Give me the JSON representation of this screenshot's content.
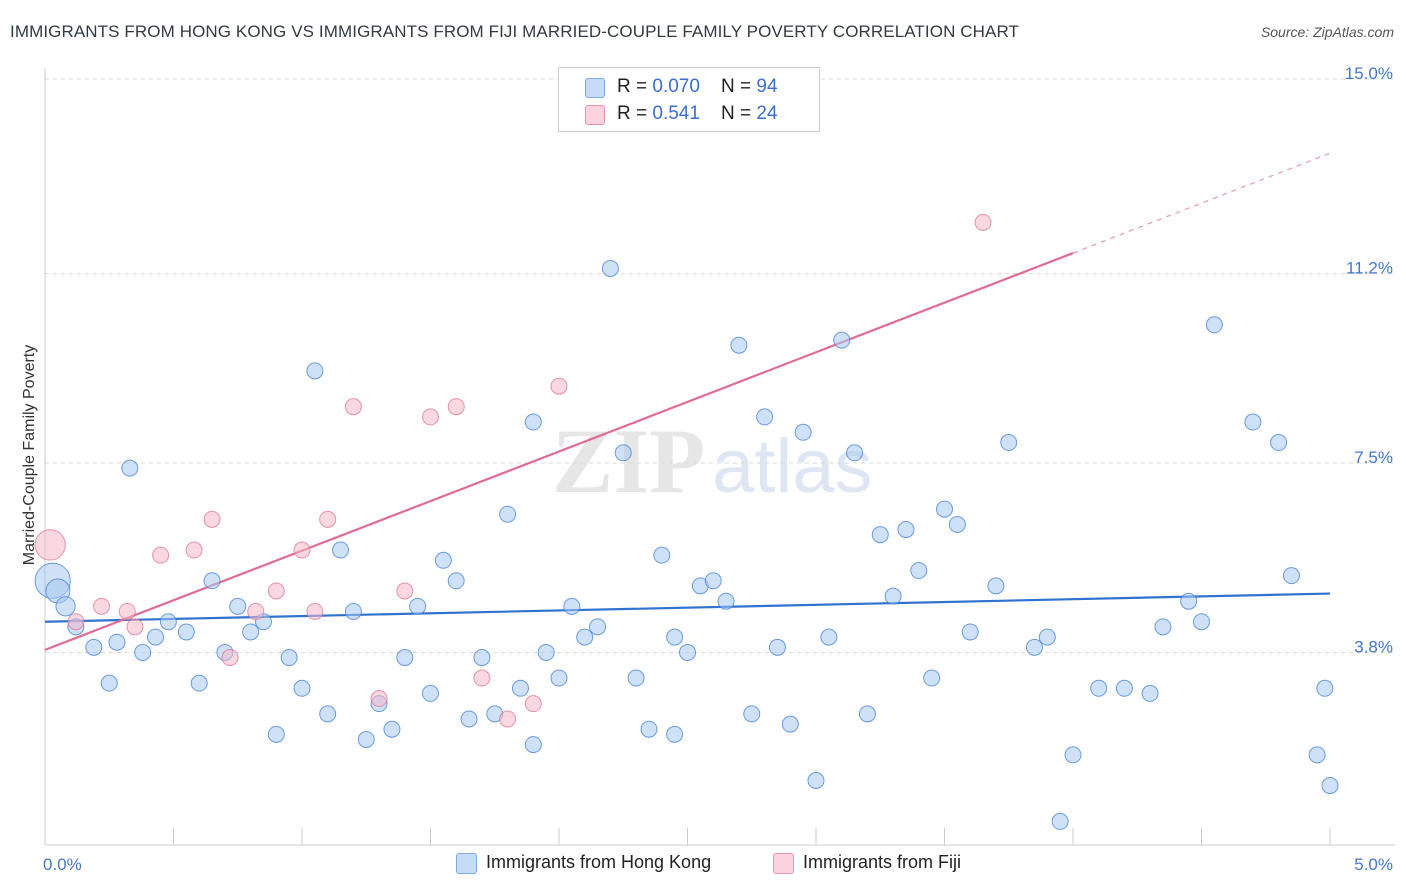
{
  "title": "IMMIGRANTS FROM HONG KONG VS IMMIGRANTS FROM FIJI MARRIED-COUPLE FAMILY POVERTY CORRELATION CHART",
  "source": "Source: ZipAtlas.com",
  "watermark": {
    "zip": "ZIP",
    "atlas": "atlas"
  },
  "legend": {
    "rows": [
      {
        "r_label": "R = ",
        "r_value": "0.070",
        "n_label": "N = ",
        "n_value": "94",
        "color": "#a8c8f0"
      },
      {
        "r_label": "R = ",
        "r_value": "0.541",
        "n_label": "N = ",
        "n_value": "24",
        "color": "#f5b8cb"
      }
    ]
  },
  "bottom_legend": [
    {
      "label": "Immigrants from Hong Kong",
      "color": "#a8c8f0"
    },
    {
      "label": "Immigrants from Fiji",
      "color": "#f5b8cb"
    }
  ],
  "chart_data": {
    "type": "scatter",
    "ylabel": "Married-Couple Family Poverty",
    "xlim": [
      0,
      5
    ],
    "ylim": [
      0,
      15
    ],
    "x_ticks": [
      "0.0%",
      "5.0%"
    ],
    "y_ticks": [
      {
        "value": 3.8,
        "label": "3.8%"
      },
      {
        "value": 7.5,
        "label": "7.5%"
      },
      {
        "value": 11.2,
        "label": "11.2%"
      },
      {
        "value": 15.0,
        "label": "15.0%"
      }
    ],
    "grid": "horizontal dashed",
    "series": [
      {
        "name": "Immigrants from Hong Kong",
        "color": "#4a86d8",
        "fill": "#a8c8f0",
        "trend": {
          "x": [
            0,
            5
          ],
          "y": [
            4.4,
            4.95
          ],
          "color": "#2f72d0"
        },
        "points": [
          [
            0.03,
            5.2,
            2.2
          ],
          [
            0.05,
            5.0,
            1.5
          ],
          [
            0.08,
            4.7,
            1.2
          ],
          [
            0.12,
            4.3,
            1
          ],
          [
            0.19,
            3.9,
            1
          ],
          [
            0.25,
            3.2,
            1
          ],
          [
            0.28,
            4.0,
            1
          ],
          [
            0.33,
            7.4,
            1
          ],
          [
            0.38,
            3.8,
            1
          ],
          [
            0.43,
            4.1,
            1
          ],
          [
            0.48,
            4.4,
            1
          ],
          [
            0.55,
            4.2,
            1
          ],
          [
            0.6,
            3.2,
            1
          ],
          [
            0.65,
            5.2,
            1
          ],
          [
            0.7,
            3.8,
            1
          ],
          [
            0.75,
            4.7,
            1
          ],
          [
            0.8,
            4.2,
            1
          ],
          [
            0.85,
            4.4,
            1
          ],
          [
            0.9,
            2.2,
            1
          ],
          [
            0.95,
            3.7,
            1
          ],
          [
            1.0,
            3.1,
            1
          ],
          [
            1.05,
            9.3,
            1
          ],
          [
            1.1,
            2.6,
            1
          ],
          [
            1.15,
            5.8,
            1
          ],
          [
            1.2,
            4.6,
            1
          ],
          [
            1.25,
            2.1,
            1
          ],
          [
            1.3,
            2.8,
            1
          ],
          [
            1.35,
            2.3,
            1
          ],
          [
            1.4,
            3.7,
            1
          ],
          [
            1.45,
            4.7,
            1
          ],
          [
            1.5,
            3.0,
            1
          ],
          [
            1.55,
            5.6,
            1
          ],
          [
            1.6,
            5.2,
            1
          ],
          [
            1.65,
            2.5,
            1
          ],
          [
            1.7,
            3.7,
            1
          ],
          [
            1.75,
            2.6,
            1
          ],
          [
            1.8,
            6.5,
            1
          ],
          [
            1.85,
            3.1,
            1
          ],
          [
            1.9,
            8.3,
            1
          ],
          [
            1.95,
            3.8,
            1
          ],
          [
            2.0,
            3.3,
            1
          ],
          [
            2.05,
            4.7,
            1
          ],
          [
            2.1,
            4.1,
            1
          ],
          [
            2.15,
            4.3,
            1
          ],
          [
            2.2,
            11.3,
            1
          ],
          [
            2.25,
            7.7,
            1
          ],
          [
            2.3,
            3.3,
            1
          ],
          [
            2.35,
            2.3,
            1
          ],
          [
            2.4,
            5.7,
            1
          ],
          [
            2.45,
            2.2,
            1
          ],
          [
            2.5,
            3.8,
            1
          ],
          [
            2.55,
            5.1,
            1
          ],
          [
            2.6,
            5.2,
            1
          ],
          [
            2.65,
            4.8,
            1
          ],
          [
            2.7,
            9.8,
            1
          ],
          [
            2.75,
            2.6,
            1
          ],
          [
            2.8,
            8.4,
            1
          ],
          [
            2.85,
            3.9,
            1
          ],
          [
            2.9,
            2.4,
            1
          ],
          [
            2.95,
            8.1,
            1
          ],
          [
            3.0,
            1.3,
            1
          ],
          [
            3.05,
            4.1,
            1
          ],
          [
            3.1,
            9.9,
            1
          ],
          [
            3.15,
            7.7,
            1
          ],
          [
            3.2,
            2.6,
            1
          ],
          [
            3.25,
            6.1,
            1
          ],
          [
            3.3,
            4.9,
            1
          ],
          [
            3.35,
            6.2,
            1
          ],
          [
            3.4,
            5.4,
            1
          ],
          [
            3.45,
            3.3,
            1
          ],
          [
            3.5,
            6.6,
            1
          ],
          [
            3.55,
            6.3,
            1
          ],
          [
            3.7,
            5.1,
            1
          ],
          [
            3.75,
            7.9,
            1
          ],
          [
            3.85,
            3.9,
            1
          ],
          [
            3.9,
            4.1,
            1
          ],
          [
            3.95,
            0.5,
            1
          ],
          [
            4.0,
            1.8,
            1
          ],
          [
            4.1,
            3.1,
            1
          ],
          [
            4.2,
            3.1,
            1
          ],
          [
            4.3,
            3.0,
            1
          ],
          [
            4.35,
            4.3,
            1
          ],
          [
            4.45,
            4.8,
            1
          ],
          [
            4.5,
            4.4,
            1
          ],
          [
            4.55,
            10.2,
            1
          ],
          [
            4.7,
            8.3,
            1
          ],
          [
            4.8,
            7.9,
            1
          ],
          [
            4.85,
            5.3,
            1
          ],
          [
            4.95,
            1.8,
            1
          ],
          [
            5.0,
            1.2,
            1
          ],
          [
            4.98,
            3.1,
            1
          ],
          [
            2.45,
            4.1,
            1
          ],
          [
            1.9,
            2.0,
            1
          ],
          [
            3.6,
            4.2,
            1
          ]
        ]
      },
      {
        "name": "Immigrants from Fiji",
        "color": "#e07a9a",
        "fill": "#f5b8cb",
        "trend": {
          "x": [
            0,
            4.0
          ],
          "y": [
            3.85,
            11.6
          ],
          "extension": {
            "x": [
              4.0,
              5.0
            ],
            "y": [
              11.6,
              13.55
            ]
          },
          "color": "#e06c93"
        },
        "points": [
          [
            0.02,
            5.9,
            1.9
          ],
          [
            0.12,
            4.4,
            1
          ],
          [
            0.22,
            4.7,
            1
          ],
          [
            0.32,
            4.6,
            1
          ],
          [
            0.45,
            5.7,
            1
          ],
          [
            0.58,
            5.8,
            1
          ],
          [
            0.65,
            6.4,
            1
          ],
          [
            0.72,
            3.7,
            1
          ],
          [
            0.82,
            4.6,
            1
          ],
          [
            0.9,
            5.0,
            1
          ],
          [
            1.0,
            5.8,
            1
          ],
          [
            1.1,
            6.4,
            1
          ],
          [
            1.2,
            8.6,
            1
          ],
          [
            1.3,
            2.9,
            1
          ],
          [
            1.4,
            5.0,
            1
          ],
          [
            1.5,
            8.4,
            1
          ],
          [
            1.6,
            8.6,
            1
          ],
          [
            1.7,
            3.3,
            1
          ],
          [
            1.8,
            2.5,
            1
          ],
          [
            1.9,
            2.8,
            1
          ],
          [
            2.0,
            9.0,
            1
          ],
          [
            3.65,
            12.2,
            1
          ],
          [
            0.35,
            4.3,
            1
          ],
          [
            1.05,
            4.6,
            1
          ]
        ]
      }
    ]
  }
}
